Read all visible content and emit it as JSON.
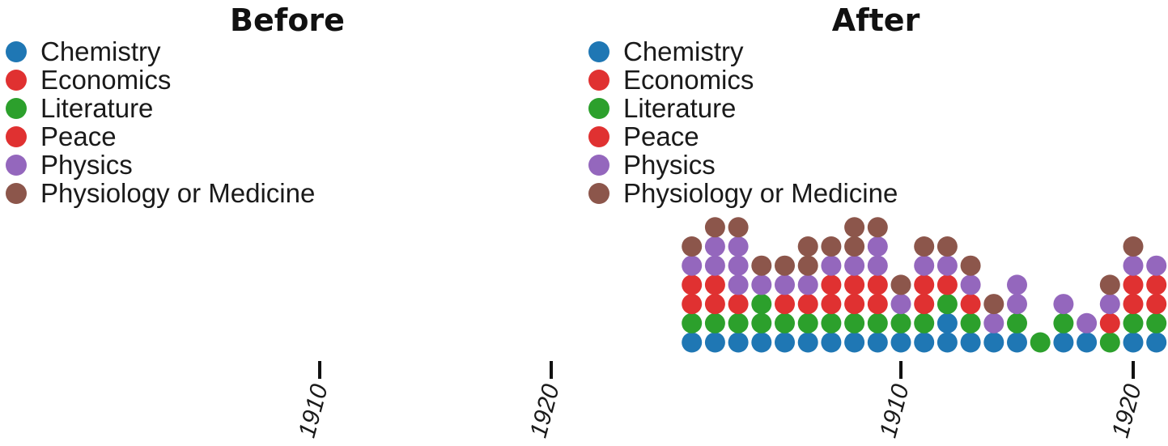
{
  "chart_data": [
    {
      "type": "scatter",
      "title": "Before",
      "legend": {
        "placement": "top-left",
        "entries": [
          {
            "label": "Chemistry",
            "color": "#1f77b4"
          },
          {
            "label": "Economics",
            "color": "#e03131"
          },
          {
            "label": "Literature",
            "color": "#2ca02c"
          },
          {
            "label": "Peace",
            "color": "#e03131"
          },
          {
            "label": "Physics",
            "color": "#9467bd"
          },
          {
            "label": "Physiology or Medicine",
            "color": "#8c564b"
          }
        ]
      },
      "x_ticks": [
        "1910",
        "1920"
      ],
      "xlim": [
        1896,
        1922
      ],
      "columns": []
    },
    {
      "type": "scatter",
      "title": "After",
      "legend": {
        "placement": "top-left",
        "entries": [
          {
            "label": "Chemistry",
            "color": "#1f77b4"
          },
          {
            "label": "Economics",
            "color": "#e03131"
          },
          {
            "label": "Literature",
            "color": "#2ca02c"
          },
          {
            "label": "Peace",
            "color": "#e03131"
          },
          {
            "label": "Physics",
            "color": "#9467bd"
          },
          {
            "label": "Physiology or Medicine",
            "color": "#8c564b"
          }
        ]
      },
      "x_ticks": [
        "1910",
        "1920"
      ],
      "xlim": [
        1895,
        1921.2
      ],
      "columns": [
        {
          "year": 1901,
          "stack": [
            "Chemistry",
            "Literature",
            "Peace",
            "Peace",
            "Physics",
            "Physiology or Medicine"
          ]
        },
        {
          "year": 1902,
          "stack": [
            "Chemistry",
            "Literature",
            "Peace",
            "Peace",
            "Physics",
            "Physics",
            "Physiology or Medicine"
          ]
        },
        {
          "year": 1903,
          "stack": [
            "Chemistry",
            "Literature",
            "Peace",
            "Physics",
            "Physics",
            "Physics",
            "Physiology or Medicine"
          ]
        },
        {
          "year": 1904,
          "stack": [
            "Chemistry",
            "Literature",
            "Literature",
            "Physics",
            "Physiology or Medicine"
          ]
        },
        {
          "year": 1905,
          "stack": [
            "Chemistry",
            "Literature",
            "Peace",
            "Physics",
            "Physiology or Medicine"
          ]
        },
        {
          "year": 1906,
          "stack": [
            "Chemistry",
            "Literature",
            "Peace",
            "Physics",
            "Physiology or Medicine",
            "Physiology or Medicine"
          ]
        },
        {
          "year": 1907,
          "stack": [
            "Chemistry",
            "Literature",
            "Peace",
            "Peace",
            "Physics",
            "Physiology or Medicine"
          ]
        },
        {
          "year": 1908,
          "stack": [
            "Chemistry",
            "Literature",
            "Peace",
            "Peace",
            "Physics",
            "Physiology or Medicine",
            "Physiology or Medicine"
          ]
        },
        {
          "year": 1909,
          "stack": [
            "Chemistry",
            "Literature",
            "Peace",
            "Peace",
            "Physics",
            "Physics",
            "Physiology or Medicine"
          ]
        },
        {
          "year": 1910,
          "stack": [
            "Chemistry",
            "Literature",
            "Physics",
            "Physiology or Medicine"
          ]
        },
        {
          "year": 1911,
          "stack": [
            "Chemistry",
            "Literature",
            "Peace",
            "Peace",
            "Physics",
            "Physiology or Medicine"
          ]
        },
        {
          "year": 1912,
          "stack": [
            "Chemistry",
            "Chemistry",
            "Literature",
            "Peace",
            "Physics",
            "Physiology or Medicine"
          ]
        },
        {
          "year": 1913,
          "stack": [
            "Chemistry",
            "Literature",
            "Peace",
            "Physics",
            "Physiology or Medicine"
          ]
        },
        {
          "year": 1914,
          "stack": [
            "Chemistry",
            "Physics",
            "Physiology or Medicine"
          ]
        },
        {
          "year": 1915,
          "stack": [
            "Chemistry",
            "Literature",
            "Physics",
            "Physics"
          ]
        },
        {
          "year": 1916,
          "stack": [
            "Literature"
          ]
        },
        {
          "year": 1917,
          "stack": [
            "Chemistry",
            "Literature",
            "Physics"
          ]
        },
        {
          "year": 1918,
          "stack": [
            "Chemistry",
            "Physics"
          ]
        },
        {
          "year": 1919,
          "stack": [
            "Literature",
            "Peace",
            "Physics",
            "Physiology or Medicine"
          ]
        },
        {
          "year": 1920,
          "stack": [
            "Chemistry",
            "Literature",
            "Peace",
            "Peace",
            "Physics",
            "Physiology or Medicine"
          ]
        },
        {
          "year": 1921,
          "stack": [
            "Chemistry",
            "Literature",
            "Peace",
            "Peace",
            "Physics"
          ]
        }
      ]
    }
  ]
}
